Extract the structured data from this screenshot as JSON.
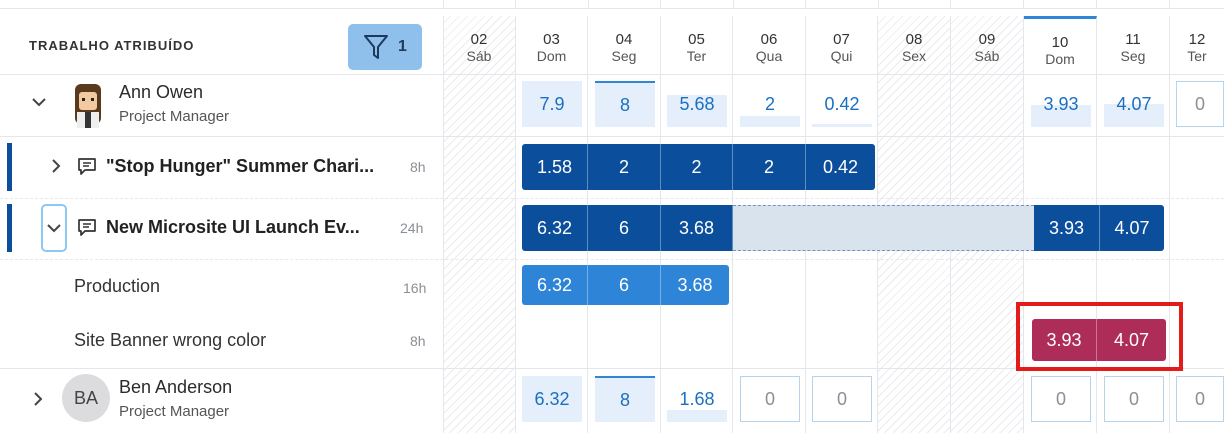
{
  "panel": {
    "title": "TRABALHO ATRIBUÍDO",
    "filter_count": "1"
  },
  "days": [
    {
      "num": "02",
      "name": "Sáb"
    },
    {
      "num": "03",
      "name": "Dom"
    },
    {
      "num": "04",
      "name": "Seg"
    },
    {
      "num": "05",
      "name": "Ter"
    },
    {
      "num": "06",
      "name": "Qua"
    },
    {
      "num": "07",
      "name": "Qui"
    },
    {
      "num": "08",
      "name": "Sex"
    },
    {
      "num": "09",
      "name": "Sáb"
    },
    {
      "num": "10",
      "name": "Dom"
    },
    {
      "num": "11",
      "name": "Seg"
    },
    {
      "num": "12",
      "name": "Ter"
    }
  ],
  "ann": {
    "name": "Ann Owen",
    "role": "Project Manager",
    "daily": [
      "7.9",
      "8",
      "5.68",
      "2",
      "0.42",
      "3.93",
      "4.07",
      "0"
    ]
  },
  "task1": {
    "title": "\"Stop Hunger\" Summer Chari...",
    "hours": "8h",
    "values": [
      "1.58",
      "2",
      "2",
      "2",
      "0.42"
    ]
  },
  "task2": {
    "title": "New Microsite UI Launch Ev...",
    "hours": "24h",
    "values": [
      "6.32",
      "6",
      "3.68",
      "3.93",
      "4.07"
    ]
  },
  "sub1": {
    "title": "Production",
    "hours": "16h",
    "values": [
      "6.32",
      "6",
      "3.68"
    ]
  },
  "sub2": {
    "title": "Site Banner wrong color",
    "hours": "8h",
    "values": [
      "3.93",
      "4.07"
    ]
  },
  "ben": {
    "initials": "BA",
    "name": "Ben  Anderson",
    "role": "Project Manager",
    "daily": [
      "6.32",
      "8",
      "1.68",
      "0",
      "0",
      "0",
      "0",
      "0"
    ]
  },
  "colors": {
    "dark_bar": "#0b4f9c",
    "mid_bar": "#2e84d6",
    "red_bar": "#ae2d58",
    "highlight": "#e41b1b"
  }
}
